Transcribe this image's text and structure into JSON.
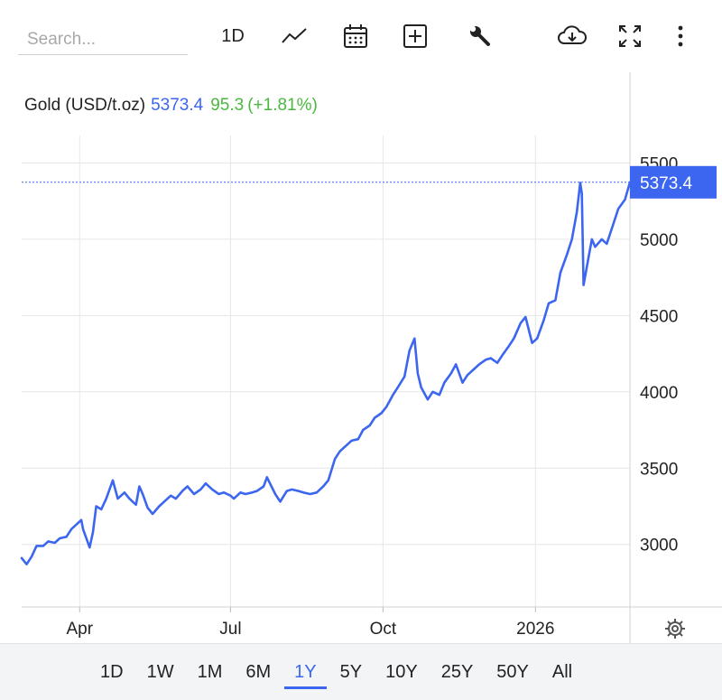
{
  "toolbar": {
    "search_placeholder": "Search...",
    "interval_label": "1D",
    "icons": [
      "chart-line-icon",
      "calendar-icon",
      "add-indicator-icon",
      "wrench-icon",
      "cloud-download-icon",
      "fullscreen-icon",
      "more-icon"
    ]
  },
  "legend": {
    "name": "Gold (USD/t.oz)",
    "price": "5373.4",
    "change": "95.3",
    "change_pct": "(+1.81%)"
  },
  "price_tag": "5373.4",
  "colors": {
    "line": "#3c66f0",
    "positive": "#4ab83f",
    "grid": "#e6e6e6"
  },
  "ranges": [
    {
      "label": "1D",
      "active": false
    },
    {
      "label": "1W",
      "active": false
    },
    {
      "label": "1M",
      "active": false
    },
    {
      "label": "6M",
      "active": false
    },
    {
      "label": "1Y",
      "active": true
    },
    {
      "label": "5Y",
      "active": false
    },
    {
      "label": "10Y",
      "active": false
    },
    {
      "label": "25Y",
      "active": false
    },
    {
      "label": "50Y",
      "active": false
    },
    {
      "label": "All",
      "active": false
    }
  ],
  "chart_data": {
    "type": "line",
    "title": "",
    "xlabel": "",
    "ylabel": "",
    "x_ticks": [
      "Apr",
      "Jul",
      "Oct",
      "2026"
    ],
    "x_tick_dates": [
      "2025-04-01",
      "2025-07-01",
      "2025-10-01",
      "2026-01-01"
    ],
    "y_ticks": [
      3000,
      3500,
      4000,
      4500,
      5000,
      5500
    ],
    "xlim": [
      "2025-02-25",
      "2026-02-27"
    ],
    "ylim": [
      2590,
      5680
    ],
    "grid": true,
    "last_price": 5373.4,
    "series": [
      {
        "x": [
          "2025-02-25",
          "2025-02-28",
          "2025-03-03",
          "2025-03-06",
          "2025-03-10",
          "2025-03-13",
          "2025-03-17",
          "2025-03-20",
          "2025-03-24",
          "2025-03-27",
          "2025-03-31",
          "2025-04-02",
          "2025-04-03",
          "2025-04-07",
          "2025-04-09",
          "2025-04-11",
          "2025-04-14",
          "2025-04-17",
          "2025-04-21",
          "2025-04-22",
          "2025-04-24",
          "2025-04-28",
          "2025-05-01",
          "2025-05-05",
          "2025-05-07",
          "2025-05-09",
          "2025-05-12",
          "2025-05-15",
          "2025-05-19",
          "2025-05-22",
          "2025-05-26",
          "2025-05-29",
          "2025-06-02",
          "2025-06-05",
          "2025-06-09",
          "2025-06-13",
          "2025-06-16",
          "2025-06-20",
          "2025-06-24",
          "2025-06-27",
          "2025-07-01",
          "2025-07-03",
          "2025-07-07",
          "2025-07-10",
          "2025-07-14",
          "2025-07-17",
          "2025-07-21",
          "2025-07-23",
          "2025-07-28",
          "2025-07-31",
          "2025-08-04",
          "2025-08-07",
          "2025-08-11",
          "2025-08-14",
          "2025-08-18",
          "2025-08-22",
          "2025-08-26",
          "2025-08-29",
          "2025-09-02",
          "2025-09-05",
          "2025-09-09",
          "2025-09-12",
          "2025-09-16",
          "2025-09-19",
          "2025-09-23",
          "2025-09-26",
          "2025-09-30",
          "2025-10-03",
          "2025-10-07",
          "2025-10-10",
          "2025-10-14",
          "2025-10-17",
          "2025-10-20",
          "2025-10-22",
          "2025-10-24",
          "2025-10-28",
          "2025-10-31",
          "2025-11-04",
          "2025-11-07",
          "2025-11-11",
          "2025-11-14",
          "2025-11-18",
          "2025-11-21",
          "2025-11-25",
          "2025-11-28",
          "2025-12-02",
          "2025-12-05",
          "2025-12-09",
          "2025-12-12",
          "2025-12-16",
          "2025-12-19",
          "2025-12-23",
          "2025-12-26",
          "2025-12-30",
          "2026-01-02",
          "2026-01-06",
          "2026-01-09",
          "2026-01-13",
          "2026-01-16",
          "2026-01-20",
          "2026-01-23",
          "2026-01-26",
          "2026-01-28",
          "2026-01-29",
          "2026-01-30",
          "2026-02-02",
          "2026-02-04",
          "2026-02-06",
          "2026-02-10",
          "2026-02-13",
          "2026-02-17",
          "2026-02-20",
          "2026-02-24",
          "2026-02-27"
        ],
        "y": [
          2910,
          2870,
          2920,
          2990,
          2990,
          3020,
          3010,
          3040,
          3050,
          3100,
          3140,
          3160,
          3100,
          2980,
          3080,
          3250,
          3230,
          3300,
          3420,
          3380,
          3300,
          3340,
          3300,
          3260,
          3380,
          3330,
          3240,
          3200,
          3250,
          3280,
          3320,
          3300,
          3350,
          3380,
          3330,
          3360,
          3400,
          3360,
          3330,
          3340,
          3320,
          3300,
          3340,
          3330,
          3340,
          3350,
          3380,
          3440,
          3330,
          3280,
          3350,
          3360,
          3350,
          3340,
          3330,
          3340,
          3380,
          3420,
          3560,
          3610,
          3650,
          3680,
          3690,
          3750,
          3780,
          3830,
          3860,
          3900,
          3980,
          4030,
          4100,
          4270,
          4350,
          4120,
          4030,
          3950,
          4000,
          3980,
          4060,
          4120,
          4180,
          4060,
          4110,
          4150,
          4180,
          4210,
          4220,
          4190,
          4240,
          4300,
          4350,
          4450,
          4490,
          4320,
          4350,
          4470,
          4580,
          4600,
          4780,
          4900,
          5000,
          5180,
          5370,
          5300,
          4700,
          4880,
          5000,
          4950,
          5000,
          4970,
          5100,
          5200,
          5260,
          5373.4
        ]
      }
    ]
  }
}
